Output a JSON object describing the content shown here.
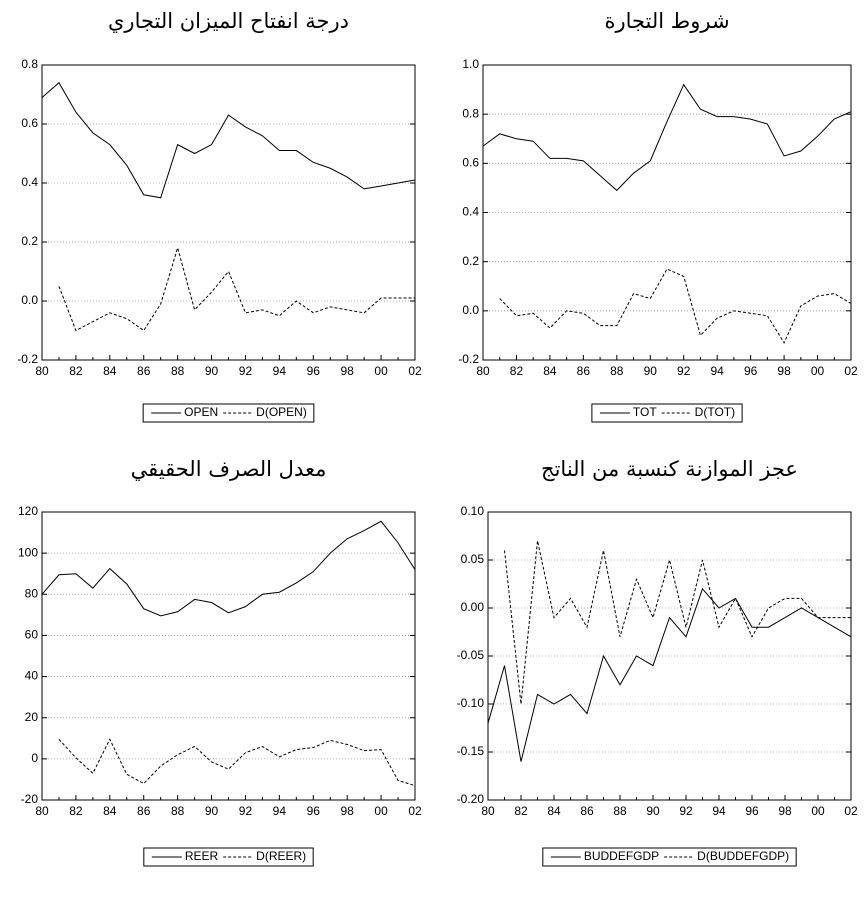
{
  "chart_data": [
    {
      "type": "line",
      "title": "درجة انفتاح الميزان التجاري",
      "categories": [
        "80",
        null,
        "82",
        null,
        "84",
        null,
        "86",
        null,
        "88",
        null,
        "90",
        null,
        "92",
        null,
        "94",
        null,
        "96",
        null,
        "98",
        null,
        "00",
        null,
        "02"
      ],
      "series": [
        {
          "name": "OPEN",
          "color": "#000000",
          "line_style": "solid",
          "values": [
            0.69,
            0.74,
            0.64,
            0.57,
            0.53,
            0.46,
            0.36,
            0.35,
            0.53,
            0.5,
            0.53,
            0.63,
            0.59,
            0.56,
            0.51,
            0.51,
            0.47,
            0.45,
            0.42,
            0.38,
            0.39,
            0.4,
            0.41
          ]
        },
        {
          "name": "D(OPEN)",
          "color": "#000000",
          "line_style": "dashed",
          "values": [
            null,
            0.05,
            -0.1,
            -0.07,
            -0.04,
            -0.06,
            -0.1,
            -0.01,
            0.18,
            -0.03,
            0.03,
            0.1,
            -0.04,
            -0.03,
            -0.05,
            0.0,
            -0.04,
            -0.02,
            -0.03,
            -0.04,
            0.01,
            0.01,
            0.01
          ]
        }
      ],
      "ylim": [
        -0.2,
        0.8
      ],
      "yticks": [
        -0.2,
        {
          "value": 0,
          "label": "0.0"
        },
        0.2,
        0.4,
        0.6,
        0.8
      ],
      "grid": true,
      "legend": "bottom"
    },
    {
      "type": "line",
      "title": "شروط التجارة",
      "categories": [
        "80",
        null,
        "82",
        null,
        "84",
        null,
        "86",
        null,
        "88",
        null,
        "90",
        null,
        "92",
        null,
        "94",
        null,
        "96",
        null,
        "98",
        null,
        "00",
        null,
        "02"
      ],
      "series": [
        {
          "name": "TOT",
          "color": "#000000",
          "line_style": "solid",
          "values": [
            0.67,
            0.72,
            0.7,
            0.69,
            0.62,
            0.62,
            0.61,
            0.55,
            0.49,
            0.56,
            0.61,
            0.77,
            0.92,
            0.82,
            0.79,
            0.79,
            0.78,
            0.76,
            0.63,
            0.65,
            0.71,
            0.78,
            0.81
          ]
        },
        {
          "name": "D(TOT)",
          "color": "#000000",
          "line_style": "dashed",
          "values": [
            null,
            0.05,
            -0.02,
            -0.01,
            -0.07,
            0.0,
            -0.01,
            -0.06,
            -0.06,
            0.07,
            0.05,
            0.17,
            0.14,
            -0.1,
            -0.03,
            0.0,
            -0.01,
            -0.02,
            -0.13,
            0.02,
            0.06,
            0.07,
            0.03
          ]
        }
      ],
      "ylim": [
        -0.2,
        1.0
      ],
      "yticks": [
        -0.2,
        {
          "value": 0,
          "label": "0.0"
        },
        0.2,
        0.4,
        0.6,
        0.8,
        {
          "value": 1,
          "label": "1.0"
        }
      ],
      "grid": true,
      "legend": "bottom"
    },
    {
      "type": "line",
      "title": "معدل الصرف الحقيقي",
      "categories": [
        "80",
        null,
        "82",
        null,
        "84",
        null,
        "86",
        null,
        "88",
        null,
        "90",
        null,
        "92",
        null,
        "94",
        null,
        "96",
        null,
        "98",
        null,
        "00",
        null,
        "02"
      ],
      "series": [
        {
          "name": "REER",
          "color": "#000000",
          "line_style": "solid",
          "values": [
            80,
            89.5,
            90,
            83,
            92.5,
            85,
            73,
            69.5,
            71.5,
            77.5,
            76,
            71,
            74,
            80,
            81,
            85.5,
            91,
            100,
            107,
            111,
            115.5,
            105,
            92
          ]
        },
        {
          "name": "D(REER)",
          "color": "#000000",
          "line_style": "dashed",
          "values": [
            null,
            9.5,
            0.5,
            -7,
            9.5,
            -7.5,
            -12,
            -3.5,
            2,
            6,
            -1.5,
            -5,
            3,
            6,
            1,
            4.5,
            5.5,
            9,
            7,
            4,
            4.5,
            -10.5,
            -13
          ]
        }
      ],
      "ylim": [
        -20,
        120
      ],
      "yticks": [
        -20,
        0,
        20,
        40,
        60,
        80,
        100,
        120
      ],
      "grid": true,
      "legend": "bottom"
    },
    {
      "type": "line",
      "title": "عجز الموازنة كنسبة من الناتج",
      "categories": [
        "80",
        null,
        "82",
        null,
        "84",
        null,
        "86",
        null,
        "88",
        null,
        "90",
        null,
        "92",
        null,
        "94",
        null,
        "96",
        null,
        "98",
        null,
        "00",
        null,
        "02"
      ],
      "series": [
        {
          "name": "BUDDEFGDP",
          "color": "#000000",
          "line_style": "solid",
          "values": [
            -0.12,
            -0.06,
            -0.16,
            -0.09,
            -0.1,
            -0.09,
            -0.11,
            -0.05,
            -0.08,
            -0.05,
            -0.06,
            -0.01,
            -0.03,
            0.02,
            0.0,
            0.01,
            -0.02,
            -0.02,
            -0.01,
            0.0,
            -0.01,
            -0.02,
            -0.03
          ]
        },
        {
          "name": "D(BUDDEFGDP)",
          "color": "#000000",
          "line_style": "dashed",
          "values": [
            null,
            0.06,
            -0.1,
            0.07,
            -0.01,
            0.01,
            -0.02,
            0.06,
            -0.03,
            0.03,
            -0.01,
            0.05,
            -0.02,
            0.05,
            -0.02,
            0.01,
            -0.03,
            0.0,
            0.01,
            0.01,
            -0.01,
            -0.01,
            -0.01
          ]
        }
      ],
      "ylim": [
        -0.2,
        0.1
      ],
      "yticks": [
        {
          "value": -0.2,
          "label": "-0.20"
        },
        -0.15,
        {
          "value": -0.1,
          "label": "-0.10"
        },
        -0.05,
        {
          "value": 0,
          "label": "0.00"
        },
        0.05,
        {
          "value": 0.1,
          "label": "0.10"
        }
      ],
      "grid": true,
      "legend": "bottom"
    }
  ]
}
